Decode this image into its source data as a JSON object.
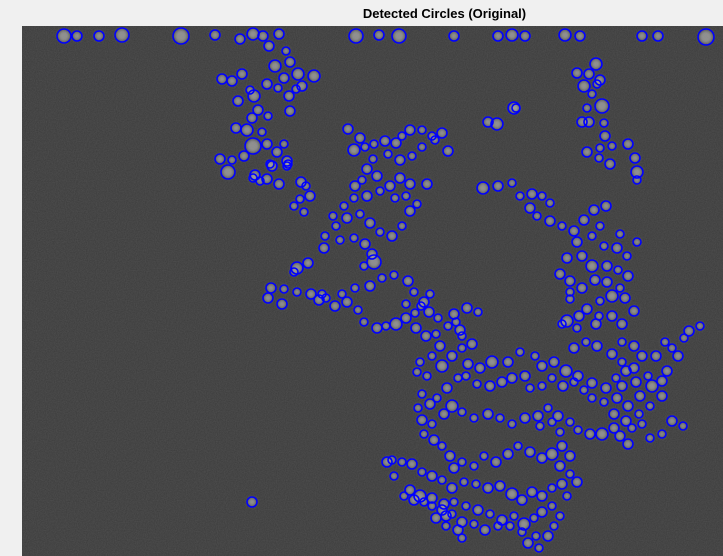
{
  "figure": {
    "title": "Detected Circles (Original)"
  },
  "image": {
    "background_color": "#3a3a3a",
    "particle_color": "#a8a8a8",
    "circle_color": "#0000ff"
  }
}
